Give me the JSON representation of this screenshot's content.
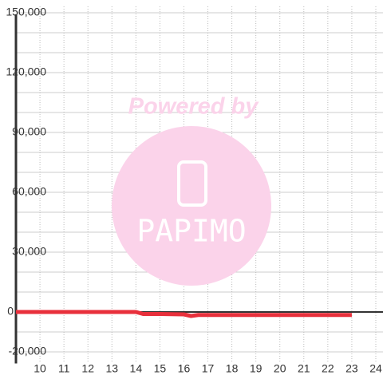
{
  "chart_data": {
    "type": "line",
    "xlim": [
      9,
      24.3
    ],
    "ylim": [
      -25000,
      150000
    ],
    "xticks": [
      10,
      11,
      12,
      13,
      14,
      15,
      16,
      17,
      18,
      19,
      20,
      21,
      22,
      23,
      24
    ],
    "yticks": [
      {
        "value": 150000,
        "label": "150,000"
      },
      {
        "value": 120000,
        "label": "120,000"
      },
      {
        "value": 90000,
        "label": "90,000"
      },
      {
        "value": 60000,
        "label": "60,000"
      },
      {
        "value": 30000,
        "label": "30,000"
      },
      0,
      {
        "value": -20000,
        "label": "-20,000"
      }
    ],
    "yminor": [
      140000,
      130000,
      110000,
      100000,
      80000,
      70000,
      50000,
      40000,
      20000,
      10000,
      -10000
    ],
    "grid": true,
    "series": [
      {
        "color": "#e8303c",
        "x": [
          9,
          10,
          11,
          12,
          13,
          14,
          14.3,
          15,
          16,
          16.3,
          16.6,
          17,
          18,
          19,
          20,
          21,
          22,
          23
        ],
        "values": [
          0,
          0,
          0,
          0,
          0,
          0,
          -1000,
          -1000,
          -1200,
          -2000,
          -1500,
          -1500,
          -1500,
          -1500,
          -1500,
          -1500,
          -1500,
          -1500
        ]
      }
    ]
  },
  "watermark": {
    "text": "Powered by",
    "logo": "PAPIMO"
  }
}
